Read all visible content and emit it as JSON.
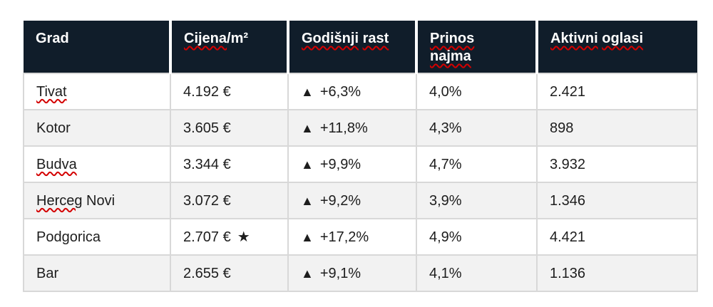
{
  "table": {
    "header": {
      "grad": "Grad",
      "cijena_word": "Cijena",
      "cijena_suffix": "/m²",
      "rast_word1": "Godišnji",
      "rast_word2": "rast",
      "prinos_word1": "Prinos",
      "prinos_word2": "najma",
      "oglasi_word1": "Aktivni",
      "oglasi_word2": "oglasi"
    },
    "rows": [
      {
        "grad": "Tivat",
        "grad_suffix": "",
        "cijena": "4.192 €",
        "rast": "+6,3%",
        "prinos": "4,0%",
        "oglasi": "2.421"
      },
      {
        "grad": "Kotor",
        "grad_suffix": "",
        "cijena": "3.605 €",
        "rast": "+11,8%",
        "prinos": "4,3%",
        "oglasi": "898"
      },
      {
        "grad": "Budva",
        "grad_suffix": "",
        "cijena": "3.344 €",
        "rast": "+9,9%",
        "prinos": "4,7%",
        "oglasi": "3.932"
      },
      {
        "grad": "Herceg",
        "grad_suffix": " Novi",
        "cijena": "3.072 €",
        "rast": "+9,2%",
        "prinos": "3,9%",
        "oglasi": "1.346"
      },
      {
        "grad": "Podgorica",
        "grad_suffix": "",
        "cijena": "2.707 €",
        "rast": "+17,2%",
        "prinos": "4,9%",
        "oglasi": "4.421"
      },
      {
        "grad": "Bar",
        "grad_suffix": "",
        "cijena": "2.655 €",
        "rast": "+9,1%",
        "prinos": "4,1%",
        "oglasi": "1.136"
      }
    ]
  },
  "icons": {
    "up_triangle": "▲",
    "star": "★"
  },
  "colors": {
    "header_bg": "#101d2a",
    "header_text": "#ffffff",
    "row_bg": "#ffffff",
    "row_alt_bg": "#f2f2f2",
    "border": "#d8d8d8",
    "squiggle": "#d40000",
    "body_text": "#1d1d1d"
  }
}
